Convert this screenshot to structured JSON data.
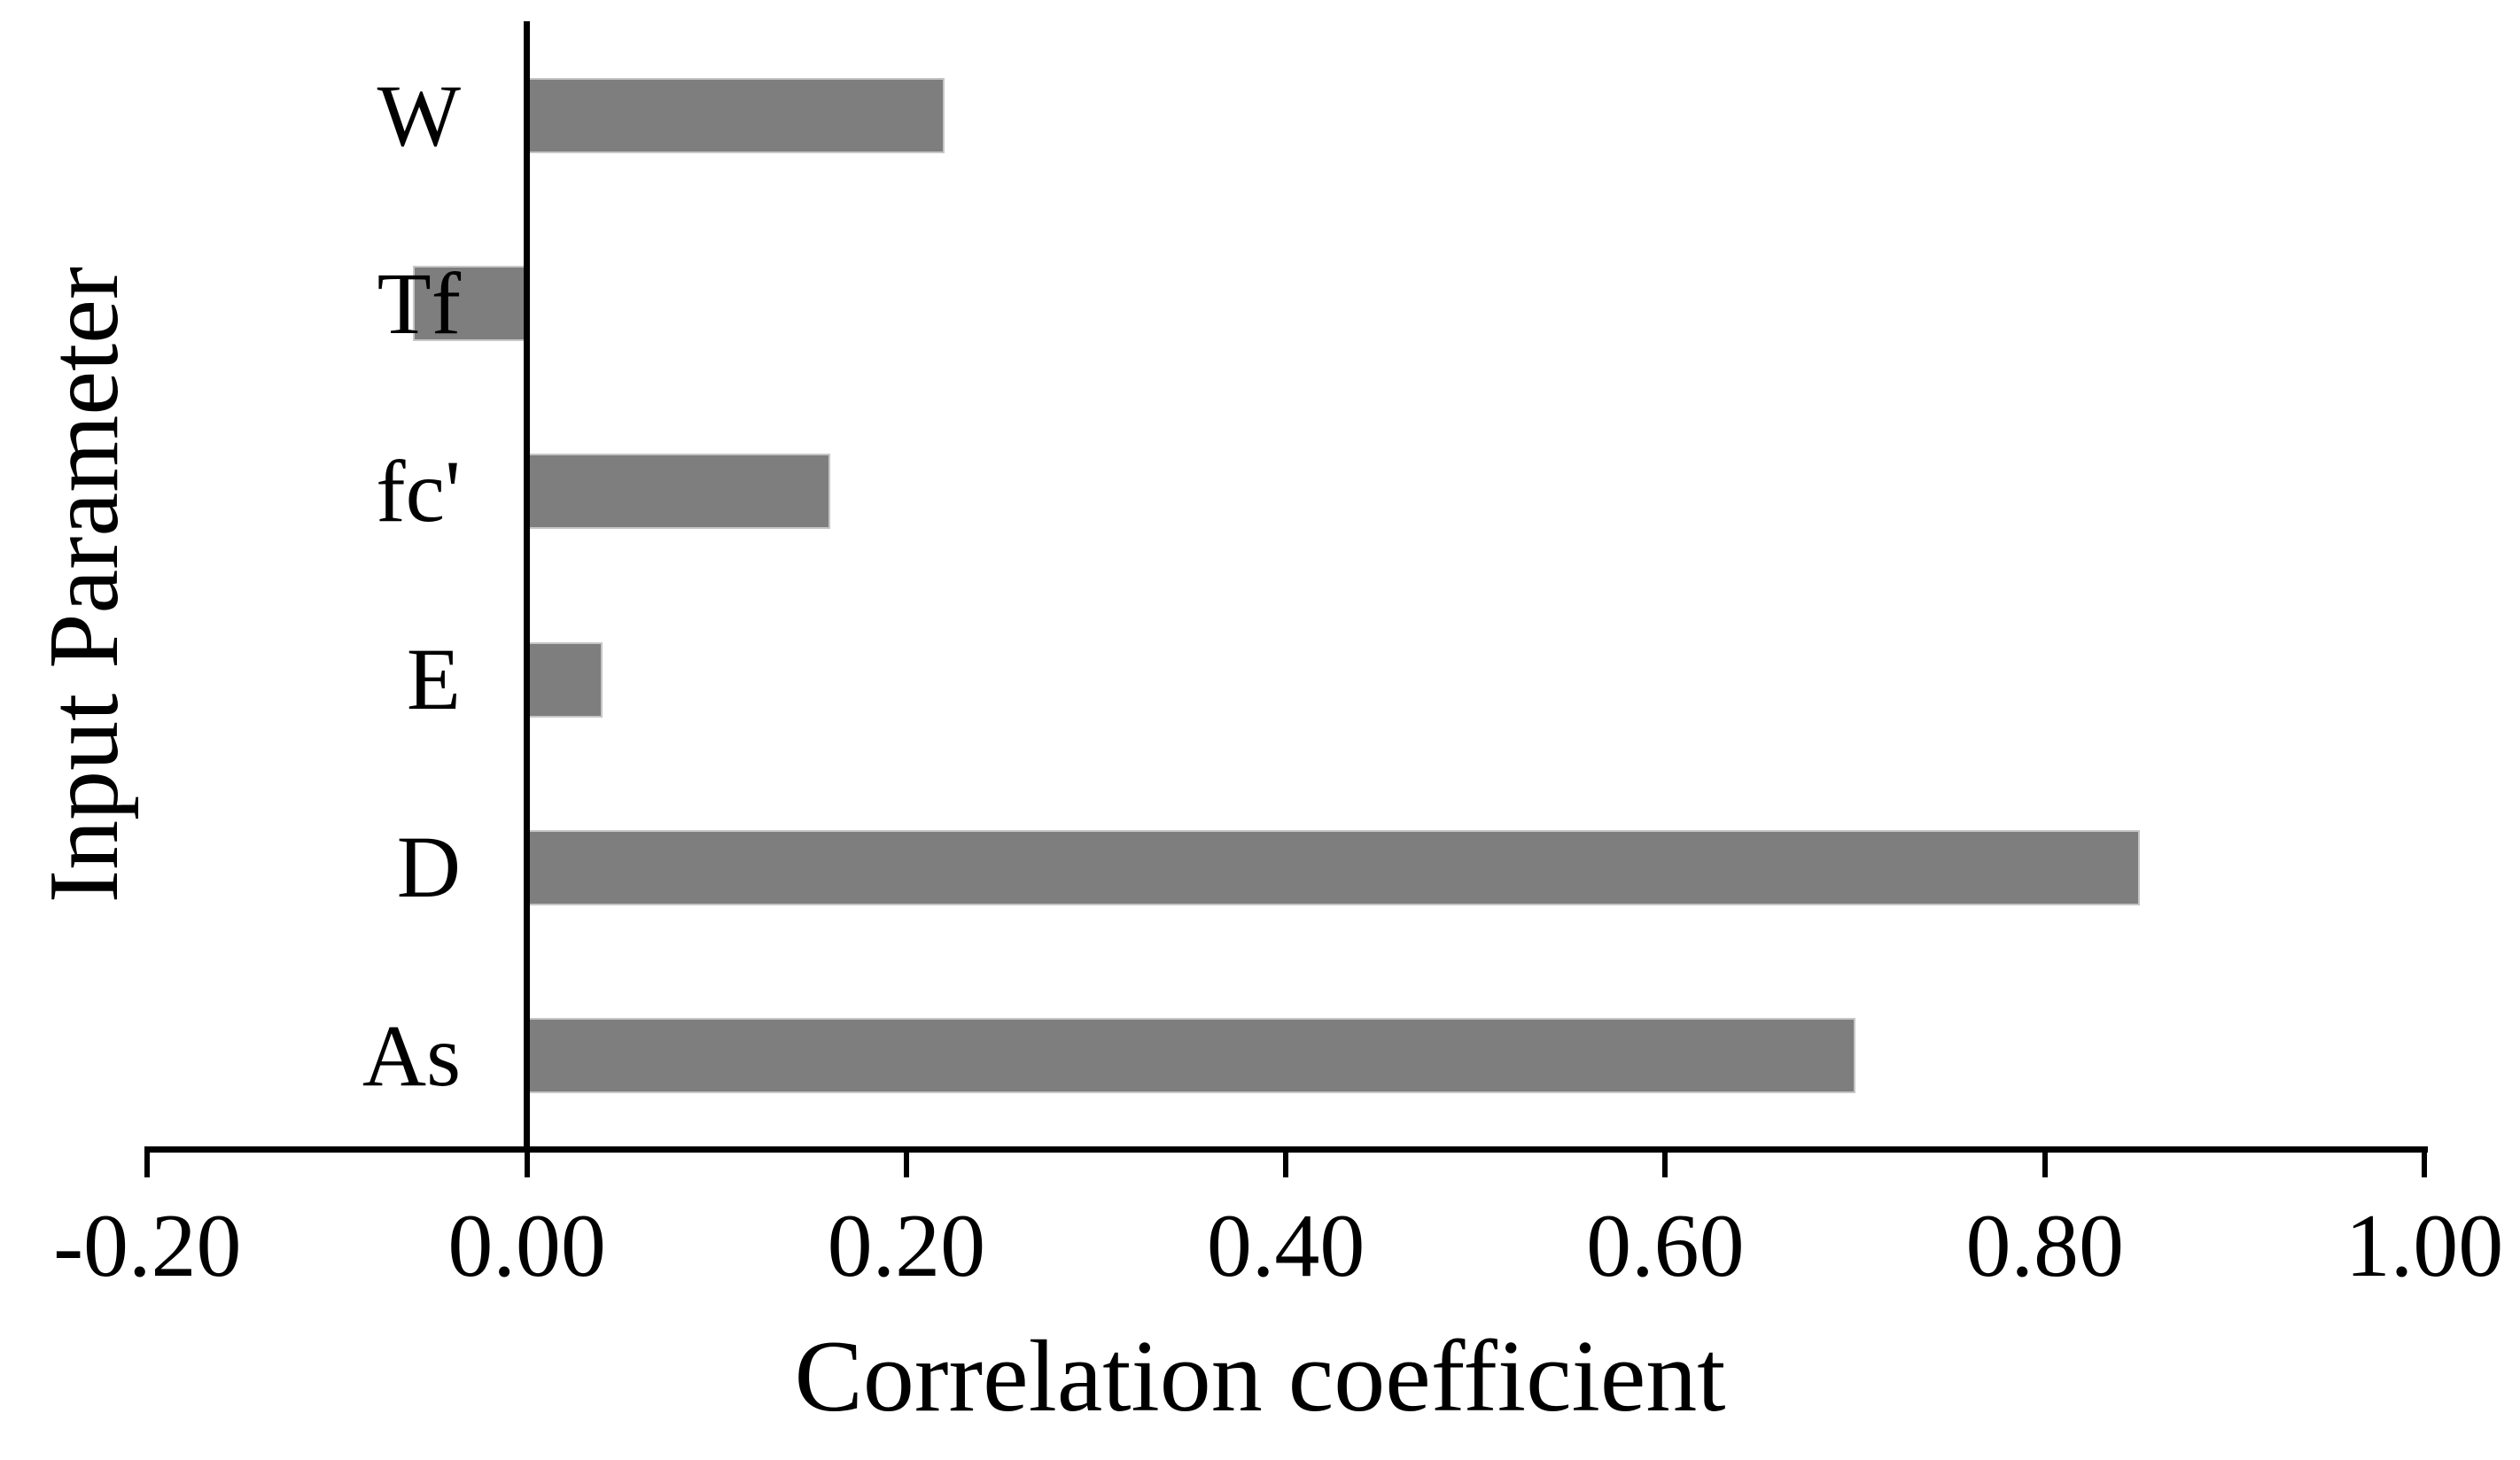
{
  "chart_data": {
    "type": "bar",
    "orientation": "horizontal",
    "title": "",
    "xlabel": "Correlation coefficient",
    "ylabel": "Input Parameter",
    "categories": [
      "W",
      "Tf",
      "fc'",
      "E",
      "D",
      "As"
    ],
    "values": [
      0.22,
      -0.06,
      0.16,
      0.04,
      0.85,
      0.7
    ],
    "xlim": [
      -0.2,
      1.0
    ],
    "xticks": [
      -0.2,
      0.0,
      0.2,
      0.4,
      0.6,
      0.8,
      1.0
    ],
    "xtick_labels": [
      "-0.20",
      "0.00",
      "0.20",
      "0.40",
      "0.60",
      "0.80",
      "1.00"
    ],
    "grid": false,
    "legend": null,
    "colors": {
      "bar_fill": "#7e7e7e",
      "bar_edge": "#c6c6c6",
      "axis": "#000000",
      "text": "#000000",
      "background": "#ffffff"
    }
  }
}
